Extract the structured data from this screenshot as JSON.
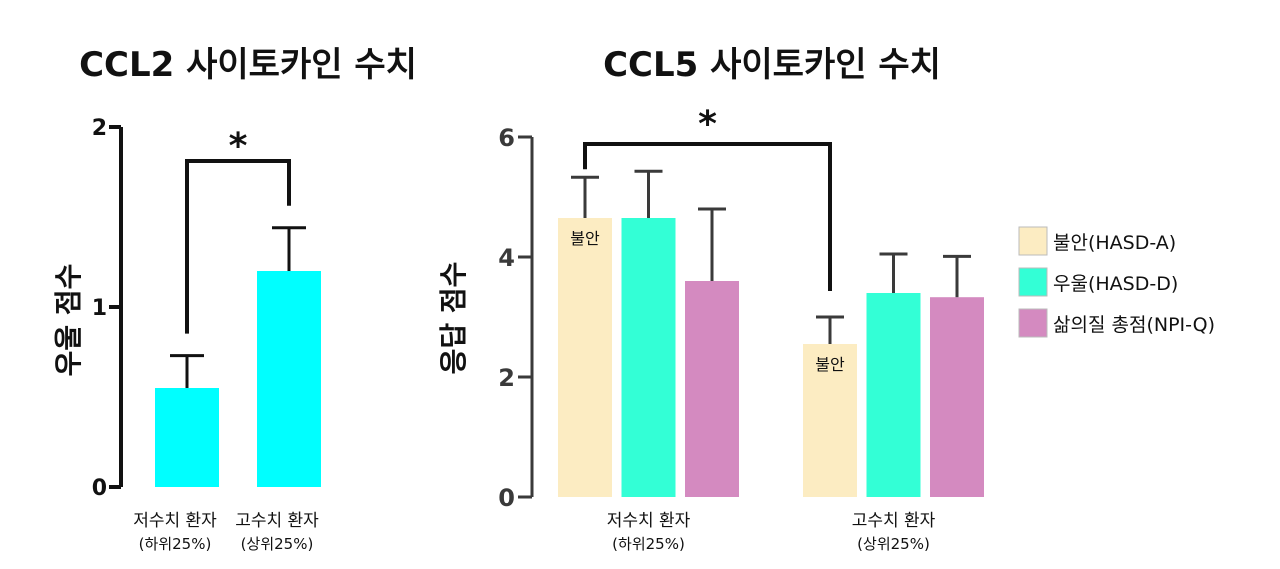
{
  "colors": {
    "cyan": "#00ffff",
    "anxiety": "#fcecc2",
    "depression": "#33ffd6",
    "qol": "#d48ac0",
    "axis": "#111111"
  },
  "chart_data": [
    {
      "type": "bar",
      "title": "CCL2 사이토카인 수치",
      "ylabel": "우울 점수",
      "ylim": [
        0,
        2
      ],
      "yticks": [
        "0",
        "1",
        "2"
      ],
      "categories": [
        "저수치 환자",
        "고수치 환자"
      ],
      "category_sublabels": [
        "(하위25%)",
        "(상위25%)"
      ],
      "values": [
        0.55,
        1.2
      ],
      "errors": [
        0.18,
        0.24
      ],
      "significance": "*"
    },
    {
      "type": "bar",
      "title": "CCL5 사이토카인 수치",
      "ylabel": "응답 점수",
      "ylim": [
        0,
        6
      ],
      "yticks": [
        "0",
        "2",
        "4",
        "6"
      ],
      "categories": [
        "저수치 환자",
        "고수치 환자"
      ],
      "category_sublabels": [
        "(하위25%)",
        "(상위25%)"
      ],
      "series": [
        {
          "name": "불안(HASD-A)",
          "values": [
            4.65,
            2.55
          ],
          "errors": [
            0.68,
            0.45
          ]
        },
        {
          "name": "우울(HASD-D)",
          "values": [
            4.65,
            3.4
          ],
          "errors": [
            0.78,
            0.65
          ]
        },
        {
          "name": "삶의질 총점(NPI-Q)",
          "values": [
            3.6,
            3.33
          ],
          "errors": [
            1.2,
            0.68
          ]
        }
      ],
      "bar_labels": [
        "불안",
        "불안"
      ],
      "significance": "*",
      "legend_position": "right"
    }
  ]
}
